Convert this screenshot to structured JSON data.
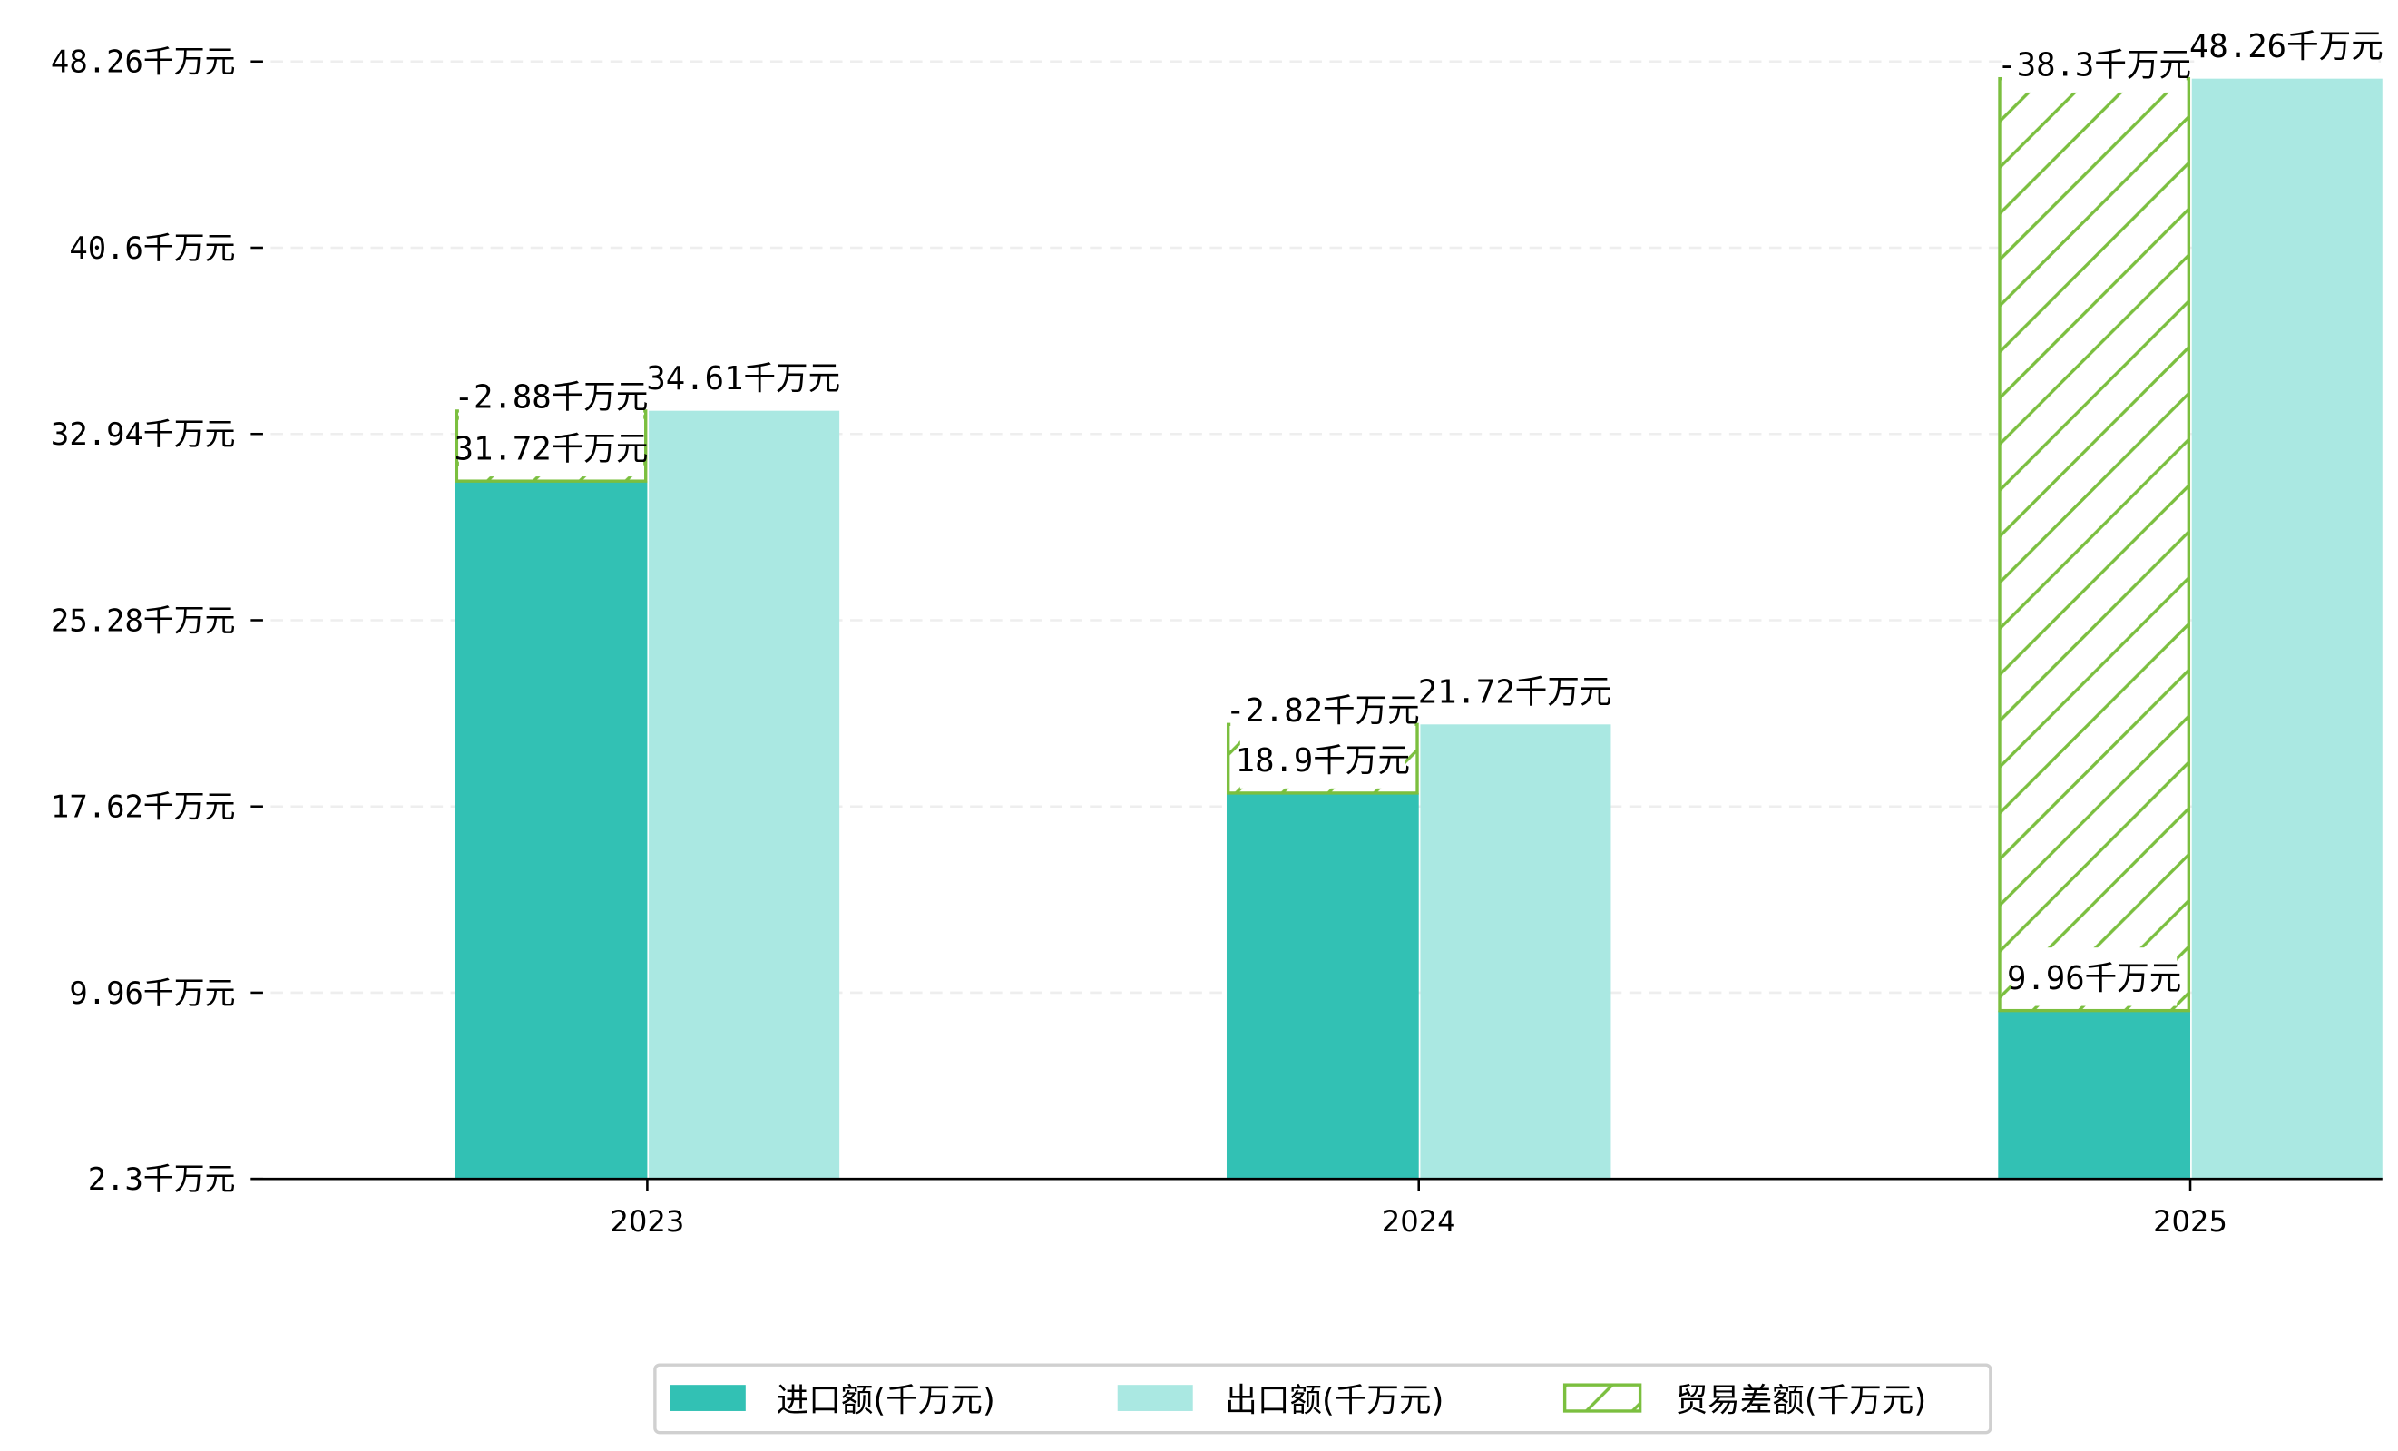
{
  "chart_data": {
    "type": "bar",
    "title": "",
    "xlabel": "",
    "ylabel": "",
    "categories": [
      "2023",
      "2024",
      "2025"
    ],
    "unit_suffix": "千万元",
    "yticks": [
      "2.3千万元",
      "9.96千万元",
      "17.62千万元",
      "25.28千万元",
      "32.94千万元",
      "40.6千万元",
      "48.26千万元"
    ],
    "ylim": [
      2.3,
      48.26
    ],
    "grid": "horizontal dashed",
    "legend_position": "bottom-center",
    "series": [
      {
        "name": "进口额(千万元)",
        "color": "#32c1b4",
        "values": [
          31.72,
          18.9,
          9.96
        ],
        "labels": [
          "31.72千万元",
          "18.9千万元",
          "9.96千万元"
        ]
      },
      {
        "name": "出口额(千万元)",
        "color": "#aae8e2",
        "values": [
          34.61,
          21.72,
          48.26
        ],
        "labels": [
          "34.61千万元",
          "21.72千万元",
          "48.26千万元"
        ]
      },
      {
        "name": "贸易差额(千万元)",
        "color": "#7bbf3f",
        "hatch": true,
        "values": [
          -2.88,
          -2.82,
          -38.3
        ],
        "labels": [
          "-2.88千万元",
          "-2.82千万元",
          "-38.3千万元"
        ]
      }
    ]
  }
}
